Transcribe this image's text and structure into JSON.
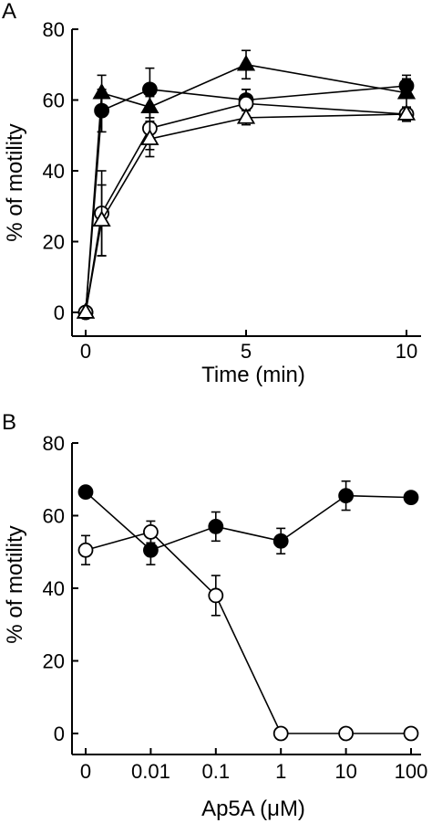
{
  "chart_data": [
    {
      "panel_label": "A",
      "type": "line",
      "xlabel": "Time (min)",
      "ylabel": "% of motility",
      "xlim": [
        0,
        10
      ],
      "ylim": [
        0,
        80
      ],
      "xticks": [
        "0",
        "5",
        "10"
      ],
      "yticks": [
        "0",
        "20",
        "40",
        "60",
        "80"
      ],
      "series": [
        {
          "marker": "circle",
          "fill": "#000000",
          "x": [
            0,
            0.5,
            2,
            5,
            10
          ],
          "y": [
            0,
            57,
            63,
            60,
            64
          ],
          "err": [
            0,
            6,
            6,
            3,
            3
          ]
        },
        {
          "marker": "triangle",
          "fill": "#000000",
          "x": [
            0,
            0.5,
            2,
            5,
            10
          ],
          "y": [
            0,
            62,
            58,
            70,
            62
          ],
          "err": [
            0,
            5,
            3,
            4,
            4
          ]
        },
        {
          "marker": "circle",
          "fill": "#ffffff",
          "x": [
            0,
            0.5,
            2,
            5,
            10
          ],
          "y": [
            0,
            28,
            52,
            59,
            56
          ],
          "err": [
            0,
            12,
            6,
            4,
            2
          ]
        },
        {
          "marker": "triangle",
          "fill": "#ffffff",
          "x": [
            0,
            0.5,
            2,
            5,
            10
          ],
          "y": [
            0,
            26,
            49,
            55,
            56
          ],
          "err": [
            0,
            10,
            5,
            2,
            2
          ]
        }
      ]
    },
    {
      "panel_label": "B",
      "type": "line",
      "xlabel": "Ap5A (μM)",
      "ylabel": "% of motility",
      "categories": [
        "0",
        "0.01",
        "0.1",
        "1",
        "10",
        "100"
      ],
      "ylim": [
        0,
        80
      ],
      "yticks": [
        "0",
        "20",
        "40",
        "60",
        "80"
      ],
      "series": [
        {
          "marker": "circle",
          "fill": "#000000",
          "y": [
            66.5,
            50.5,
            57,
            53,
            65.5,
            65
          ],
          "err": [
            0,
            4,
            4,
            3.5,
            4,
            1
          ]
        },
        {
          "marker": "circle",
          "fill": "#ffffff",
          "y": [
            50.5,
            55.5,
            38,
            0,
            0,
            0
          ],
          "err": [
            4,
            3,
            5.5,
            0,
            0,
            0
          ]
        }
      ]
    }
  ]
}
